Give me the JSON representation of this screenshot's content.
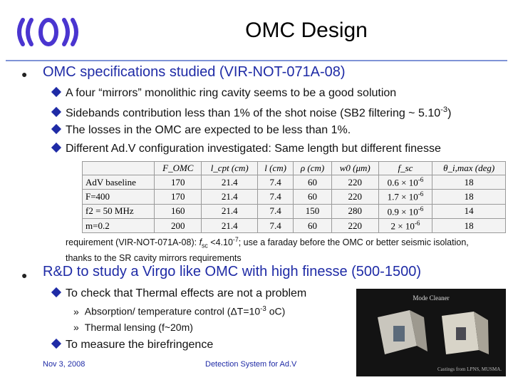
{
  "header": {
    "title": "OMC Design"
  },
  "bullets": {
    "b1": "OMC specifications studied (VIR-NOT-071A-08)",
    "b1_sub": [
      "A four “mirrors” monolithic ring cavity seems to be a good solution",
      "The losses in the OMC are expected to be less than 1%.",
      "Different Ad.V configuration investigated: Same length but different finesse"
    ],
    "b1_sub2_text": "Sidebands contribution less than 1% of the shot noise (SB2 filtering ~ 5.10",
    "b1_sub2_sup": "-3",
    "b1_sub2_tail": ")",
    "b2": "R&D to study a Virgo like OMC with high finesse (500-1500)",
    "b2_sub1": "To check that Thermal effects are not a problem",
    "b2_sub1_items": {
      "item1_pre": "Absorption/ temperature control (ΔT=10",
      "item1_sup": "-3",
      "item1_tail": " oC)",
      "item2": "Thermal lensing (f~20m)"
    },
    "b2_sub2": "To measure the birefringence"
  },
  "table": {
    "headers": [
      "F_OMC",
      "l_cpt (cm)",
      "l (cm)",
      "ρ (cm)",
      "w0 (μm)",
      "f_sc",
      "θ_i,max (deg)"
    ],
    "rows": [
      [
        "AdV baseline",
        "170",
        "21.4",
        "7.4",
        "60",
        "220",
        "0.6 × 10",
        "-6",
        "18"
      ],
      [
        "F=400",
        "170",
        "21.4",
        "7.4",
        "60",
        "220",
        "1.7 × 10",
        "-6",
        "18"
      ],
      [
        "f2 = 50 MHz",
        "160",
        "21.4",
        "7.4",
        "150",
        "280",
        "0.9 × 10",
        "-6",
        "14"
      ],
      [
        "m=0.2",
        "200",
        "21.4",
        "7.4",
        "60",
        "220",
        "2 × 10",
        "-6",
        "18"
      ]
    ]
  },
  "note": {
    "pre": "requirement (VIR-NOT-071A-08): ",
    "var": "f",
    "var_sub": "sc",
    "mid": " <4.10",
    "sup": "-7",
    "post": "; use a faraday before the OMC or better seismic isolation, thanks to the SR cavity mirrors requirements"
  },
  "photo": {
    "caption": "Mode Cleaner",
    "credit": "Castings from LPNS, MUSMA."
  },
  "footer": {
    "date": "Nov 3, 2008",
    "center": "Detection System for Ad.V"
  },
  "colors": {
    "accent": "#1f2ba6",
    "rule": "#7f93d6"
  }
}
